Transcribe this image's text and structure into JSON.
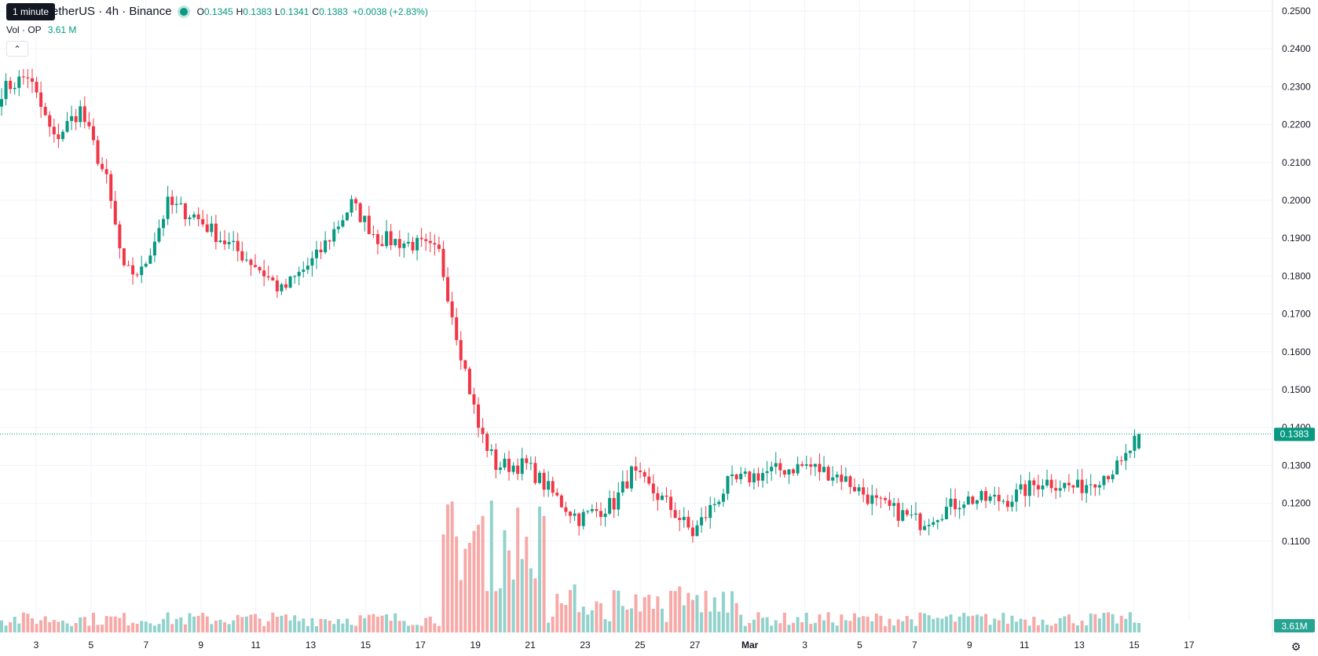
{
  "header": {
    "symbol": "OP / TetherUS · 4h · Binance",
    "symbol_visible": "etherUS · 4h · Binance",
    "tooltip": "1 minute",
    "ohlc": {
      "o_label": "O",
      "o_value": "0.1345",
      "h_label": "H",
      "h_value": "0.1383",
      "l_label": "L",
      "l_value": "0.1341",
      "c_label": "C",
      "c_value": "0.1383",
      "change": "+0.0038 (+2.83%)"
    }
  },
  "volume_legend": {
    "label": "Vol · OP",
    "value": "3.61 M"
  },
  "price_axis": {
    "ticks": [
      "0.2500",
      "0.2400",
      "0.2300",
      "0.2200",
      "0.2100",
      "0.2000",
      "0.1900",
      "0.1800",
      "0.1700",
      "0.1600",
      "0.1500",
      "0.1400",
      "0.1300",
      "0.1200",
      "0.1100"
    ],
    "last_price_label": "0.1383",
    "volume_label": "3.61M"
  },
  "time_axis": {
    "ticks": [
      "3",
      "5",
      "7",
      "9",
      "11",
      "13",
      "15",
      "17",
      "19",
      "21",
      "23",
      "25",
      "27",
      "Mar",
      "3",
      "5",
      "7",
      "9",
      "11",
      "13",
      "15",
      "17"
    ]
  },
  "colors": {
    "up": "#089981",
    "down": "#f23645",
    "up_vol": "#92d2cc",
    "down_vol": "#f7a9a7",
    "grid": "#f0f3fa"
  },
  "chart_data": {
    "type": "candlestick",
    "title": "OP / TetherUS · 4h · Binance",
    "interval": "4h",
    "ylim": [
      0.1,
      0.25
    ],
    "x_ticks": [
      "3",
      "5",
      "7",
      "9",
      "11",
      "13",
      "15",
      "17",
      "19",
      "21",
      "23",
      "25",
      "27",
      "Mar",
      "3",
      "5",
      "7",
      "9",
      "11",
      "13",
      "15",
      "17"
    ],
    "last": {
      "open": 0.1345,
      "high": 0.1383,
      "low": 0.1341,
      "close": 0.1383,
      "change": 0.0038,
      "change_pct": 2.83
    },
    "last_volume": "3.61M",
    "anchors": [
      {
        "i": 0,
        "p": 0.229
      },
      {
        "i": 6,
        "p": 0.233
      },
      {
        "i": 12,
        "p": 0.216
      },
      {
        "i": 18,
        "p": 0.224
      },
      {
        "i": 24,
        "p": 0.205
      },
      {
        "i": 28,
        "p": 0.181
      },
      {
        "i": 32,
        "p": 0.181
      },
      {
        "i": 38,
        "p": 0.199
      },
      {
        "i": 44,
        "p": 0.196
      },
      {
        "i": 50,
        "p": 0.19
      },
      {
        "i": 58,
        "p": 0.183
      },
      {
        "i": 64,
        "p": 0.176
      },
      {
        "i": 72,
        "p": 0.185
      },
      {
        "i": 80,
        "p": 0.199
      },
      {
        "i": 86,
        "p": 0.19
      },
      {
        "i": 96,
        "p": 0.188
      },
      {
        "i": 100,
        "p": 0.186
      },
      {
        "i": 104,
        "p": 0.165
      },
      {
        "i": 109,
        "p": 0.14
      },
      {
        "i": 113,
        "p": 0.13
      },
      {
        "i": 120,
        "p": 0.13
      },
      {
        "i": 128,
        "p": 0.12
      },
      {
        "i": 132,
        "p": 0.116
      },
      {
        "i": 140,
        "p": 0.12
      },
      {
        "i": 144,
        "p": 0.128
      },
      {
        "i": 152,
        "p": 0.12
      },
      {
        "i": 158,
        "p": 0.112
      },
      {
        "i": 166,
        "p": 0.125
      },
      {
        "i": 174,
        "p": 0.128
      },
      {
        "i": 184,
        "p": 0.13
      },
      {
        "i": 192,
        "p": 0.127
      },
      {
        "i": 200,
        "p": 0.12
      },
      {
        "i": 210,
        "p": 0.115
      },
      {
        "i": 220,
        "p": 0.121
      },
      {
        "i": 230,
        "p": 0.121
      },
      {
        "i": 238,
        "p": 0.126
      },
      {
        "i": 246,
        "p": 0.124
      },
      {
        "i": 256,
        "p": 0.13
      },
      {
        "i": 260,
        "p": 0.1383
      }
    ]
  }
}
